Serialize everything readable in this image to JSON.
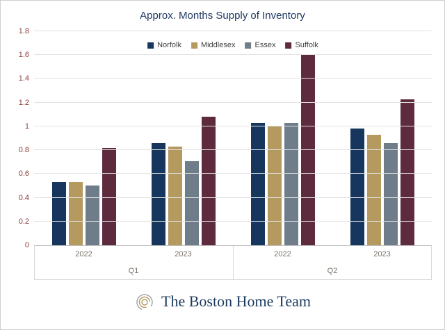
{
  "title": "Approx. Months Supply of Inventory",
  "footer": {
    "brand": "The Boston Home Team"
  },
  "colors": {
    "title": "#1f3864",
    "y_axis_labels": "#8a3d3a",
    "x_axis_labels": "#7b7268",
    "gridline": "#e2e2e2",
    "brand_text": "#1c3a5e",
    "logo_gold": "#b59a5f",
    "logo_gray": "#9aa3ad"
  },
  "chart_data": {
    "type": "bar",
    "title": "Approx. Months Supply of Inventory",
    "categories": [
      "2022",
      "2023",
      "2022",
      "2023"
    ],
    "category_groups": [
      "Q1",
      "Q1",
      "Q2",
      "Q2"
    ],
    "group_labels": [
      "Q1",
      "Q2"
    ],
    "series": [
      {
        "name": "Norfolk",
        "color": "#17365d",
        "values": [
          0.53,
          0.86,
          1.03,
          0.98
        ]
      },
      {
        "name": "Middlesex",
        "color": "#b59a5f",
        "values": [
          0.53,
          0.83,
          1.0,
          0.93
        ]
      },
      {
        "name": "Essex",
        "color": "#6f7c8a",
        "values": [
          0.5,
          0.71,
          1.03,
          0.86
        ]
      },
      {
        "name": "Suffolk",
        "color": "#5e2a3e",
        "values": [
          0.82,
          1.08,
          1.6,
          1.23
        ]
      }
    ],
    "ylim": [
      0,
      1.8
    ],
    "y_tick_step": 0.2,
    "y_tick_labels": [
      "0",
      "0.2",
      "0.4",
      "0.6",
      "0.8",
      "1",
      "1.2",
      "1.4",
      "1.6",
      "1.8"
    ],
    "grid": true,
    "legend_position": "top-center"
  }
}
